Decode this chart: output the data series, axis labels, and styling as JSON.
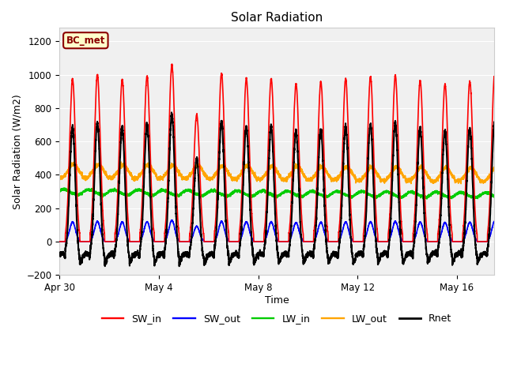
{
  "title": "Solar Radiation",
  "xlabel": "Time",
  "ylabel": "Solar Radiation (W/m2)",
  "ylim": [
    -200,
    1280
  ],
  "yticks": [
    -200,
    0,
    200,
    400,
    600,
    800,
    1000,
    1200
  ],
  "background_color": "#ffffff",
  "plot_bg_color": "#f0f0f0",
  "label_box_text": "BC_met",
  "label_box_facecolor": "#ffffcc",
  "label_box_edgecolor": "#8b0000",
  "series": {
    "SW_in": {
      "color": "#ff0000",
      "lw": 1.2
    },
    "SW_out": {
      "color": "#0000ff",
      "lw": 1.2
    },
    "LW_in": {
      "color": "#00cc00",
      "lw": 1.2
    },
    "LW_out": {
      "color": "#ffa500",
      "lw": 1.2
    },
    "Rnet": {
      "color": "#000000",
      "lw": 1.5
    }
  },
  "n_days": 18,
  "pts_per_day": 288,
  "xtick_labels": [
    "Apr 30",
    "May 4",
    "May 8",
    "May 12",
    "May 16"
  ],
  "xtick_days": [
    0,
    4,
    8,
    12,
    16
  ],
  "legend_entries": [
    "SW_in",
    "SW_out",
    "LW_in",
    "LW_out",
    "Rnet"
  ],
  "legend_colors": [
    "#ff0000",
    "#0000ff",
    "#00cc00",
    "#ffa500",
    "#000000"
  ]
}
